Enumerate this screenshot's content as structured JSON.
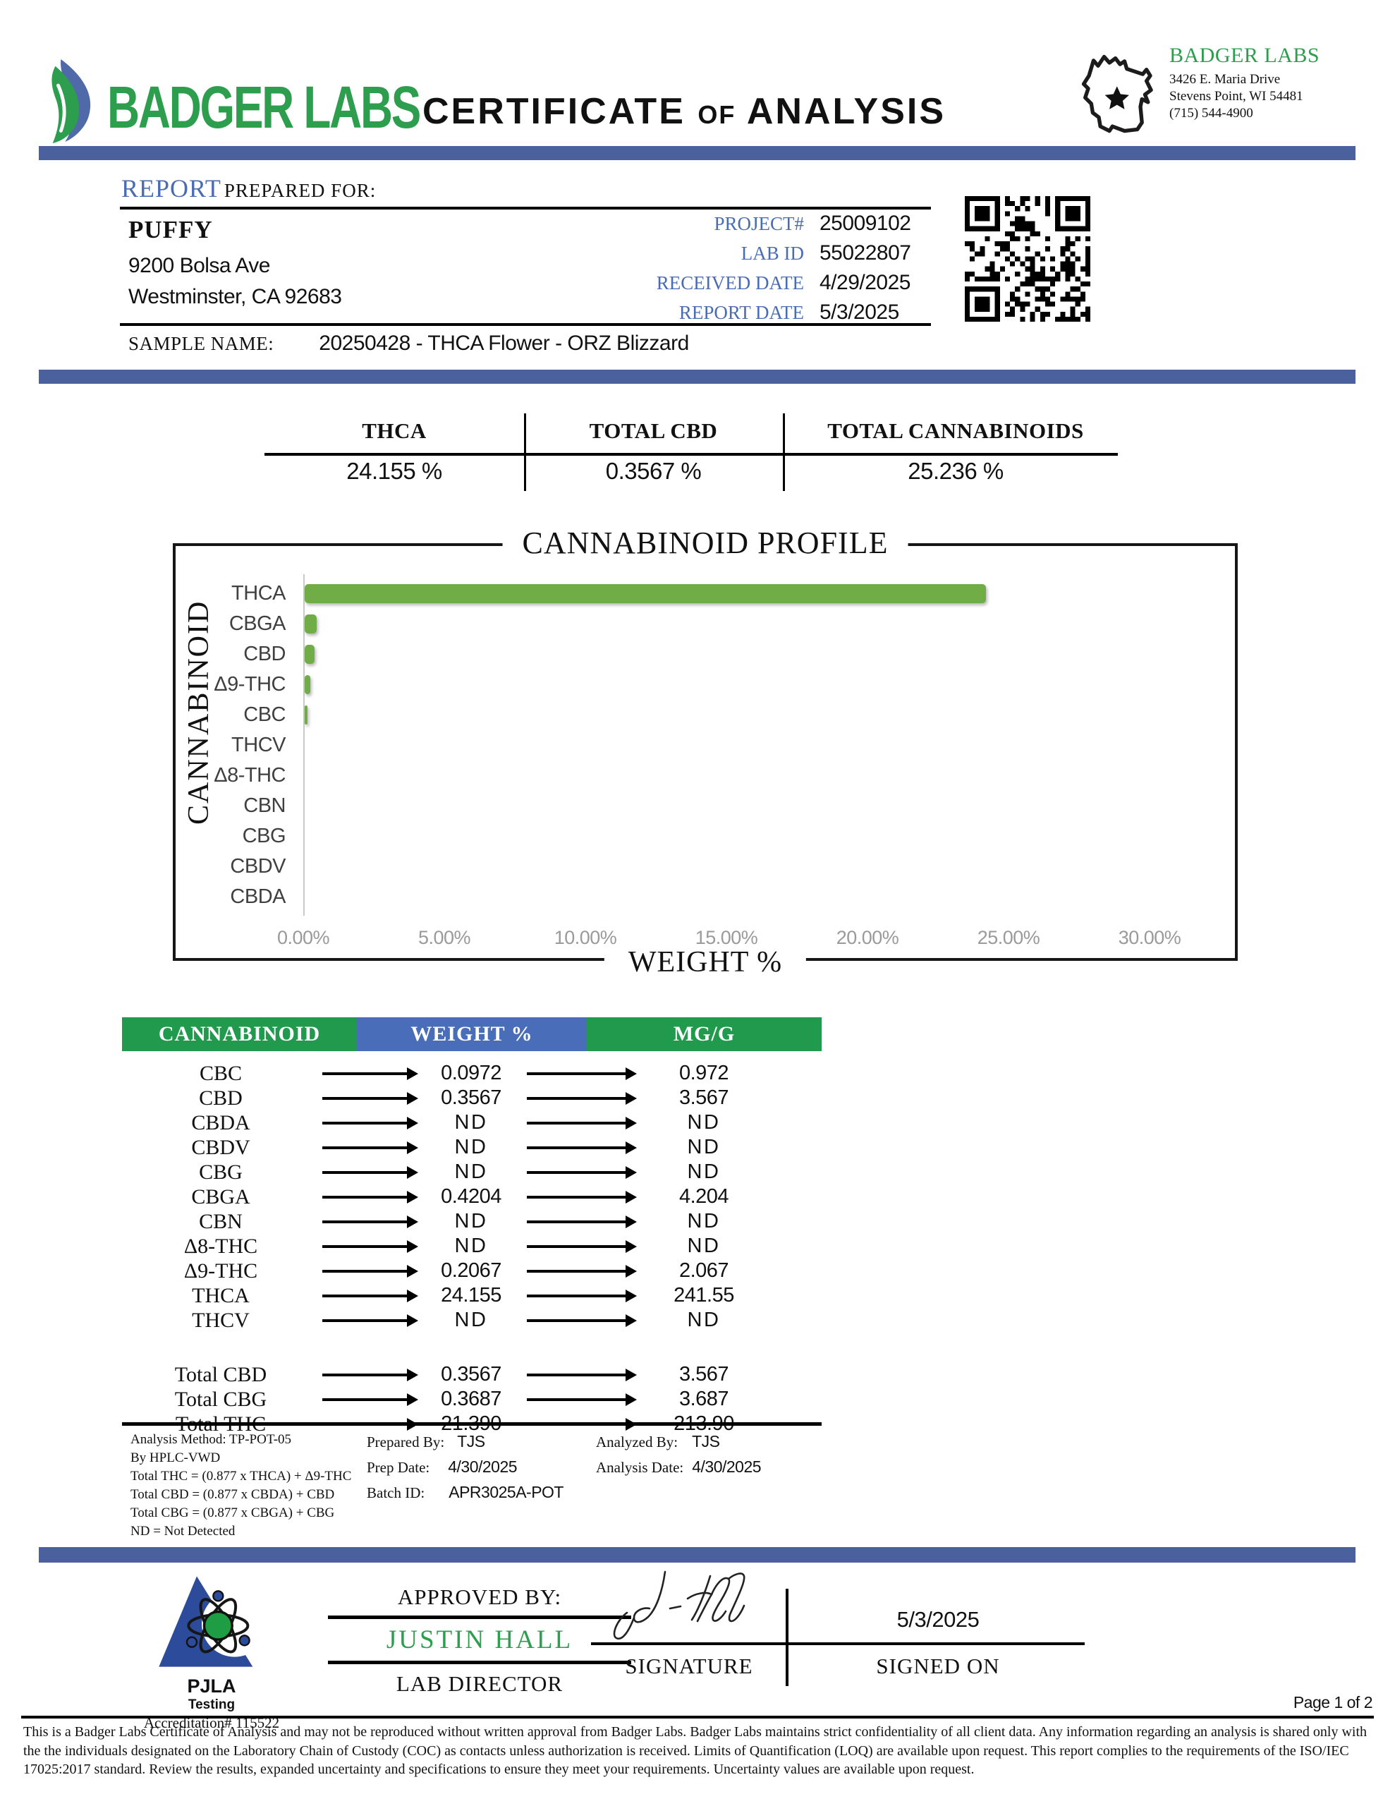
{
  "header": {
    "brand": "BADGER LABS",
    "title": [
      "CERTIFICATE",
      "of",
      "ANALYSIS"
    ],
    "lab": {
      "name": "BADGER LABS",
      "address_line1": "3426 E. Maria Drive",
      "address_line2": "Stevens Point, WI 54481",
      "phone": "(715) 544-4900"
    }
  },
  "report": {
    "section_label": "REPORT",
    "section_sublabel": "PREPARED FOR:",
    "client": {
      "name": "PUFFY",
      "address_line1": "9200 Bolsa Ave",
      "address_line2": "Westminster, CA  92683"
    },
    "meta": [
      {
        "label": "PROJECT#",
        "value": "25009102"
      },
      {
        "label": "LAB ID",
        "value": "55022807"
      },
      {
        "label": "RECEIVED DATE",
        "value": "4/29/2025"
      },
      {
        "label": "REPORT DATE",
        "value": "5/3/2025"
      }
    ],
    "sample_label": "SAMPLE NAME:",
    "sample_name": "20250428 - THCA Flower - ORZ Blizzard"
  },
  "summary": {
    "columns": [
      {
        "label": "THCA",
        "value": "24.155 %"
      },
      {
        "label": "TOTAL CBD",
        "value": "0.3567 %"
      },
      {
        "label": "TOTAL CANNABINOIDS",
        "value": "25.236 %"
      }
    ]
  },
  "chart_data": {
    "type": "bar",
    "orientation": "horizontal",
    "title": "CANNABINOID PROFILE",
    "xlabel": "WEIGHT %",
    "ylabel": "CANNABINOID",
    "categories": [
      "THCA",
      "CBGA",
      "CBD",
      "Δ9-THC",
      "CBC",
      "THCV",
      "Δ8-THC",
      "CBN",
      "CBG",
      "CBDV",
      "CBDA"
    ],
    "values": [
      24.155,
      0.4204,
      0.3567,
      0.2067,
      0.0972,
      0,
      0,
      0,
      0,
      0,
      0
    ],
    "xlim": [
      0,
      30
    ],
    "xticks": [
      "0.00%",
      "5.00%",
      "10.00%",
      "15.00%",
      "20.00%",
      "25.00%",
      "30.00%"
    ],
    "bar_color": "#70ad47",
    "grid": false,
    "legend": "none"
  },
  "table": {
    "headers": [
      "CANNABINOID",
      "WEIGHT %",
      "MG/G"
    ],
    "rows": [
      {
        "name": "CBC",
        "weight": "0.0972",
        "mgg": "0.972"
      },
      {
        "name": "CBD",
        "weight": "0.3567",
        "mgg": "3.567"
      },
      {
        "name": "CBDA",
        "weight": "ND",
        "mgg": "ND"
      },
      {
        "name": "CBDV",
        "weight": "ND",
        "mgg": "ND"
      },
      {
        "name": "CBG",
        "weight": "ND",
        "mgg": "ND"
      },
      {
        "name": "CBGA",
        "weight": "0.4204",
        "mgg": "4.204"
      },
      {
        "name": "CBN",
        "weight": "ND",
        "mgg": "ND"
      },
      {
        "name": "Δ8-THC",
        "weight": "ND",
        "mgg": "ND"
      },
      {
        "name": "Δ9-THC",
        "weight": "0.2067",
        "mgg": "2.067"
      },
      {
        "name": "THCA",
        "weight": "24.155",
        "mgg": "241.55"
      },
      {
        "name": "THCV",
        "weight": "ND",
        "mgg": "ND"
      }
    ],
    "totals": [
      {
        "name": "Total CBD",
        "weight": "0.3567",
        "mgg": "3.567"
      },
      {
        "name": "Total CBG",
        "weight": "0.3687",
        "mgg": "3.687"
      },
      {
        "name": "Total THC",
        "weight": "21.390",
        "mgg": "213.90"
      }
    ]
  },
  "methodology": {
    "lines": [
      "Analysis Method: TP-POT-05",
      "By HPLC-VWD",
      "Total THC = (0.877 x  THCA) + Δ9-THC",
      "Total CBD = (0.877 x  CBDA) + CBD",
      "Total CBG = (0.877 x  CBGA) + CBG",
      "ND = Not Detected"
    ],
    "prepared_by_label": "Prepared By:",
    "prepared_by": "TJS",
    "prep_date_label": "Prep Date:",
    "prep_date": "4/30/2025",
    "batch_id_label": "Batch ID:",
    "batch_id": "APR3025A-POT",
    "analyzed_by_label": "Analyzed By:",
    "analyzed_by": "TJS",
    "analysis_date_label": "Analysis Date:",
    "analysis_date": "4/30/2025"
  },
  "approval": {
    "accreditor": {
      "name": "PJLA",
      "line2": "Testing",
      "accreditation": "Accreditation# 115522"
    },
    "approved_by_label": "APPROVED BY:",
    "approver": "JUSTIN HALL",
    "approver_title": "LAB DIRECTOR",
    "signature_label": "SIGNATURE",
    "signed_on_label": "SIGNED ON",
    "signed_date": "5/3/2025"
  },
  "footer": {
    "page_label": "Page 1 of 2",
    "disclaimer": "This is a Badger Labs Certificate of Analysis and may not be reproduced without written approval from Badger Labs. Badger Labs maintains strict confidentiality of all client data. Any information regarding an analysis is shared only with the the individuals designated on the Laboratory Chain of Custody (COC) as contacts unless authorization is received. Limits of Quantification (LOQ) are available upon request. This report complies to the requirements of the ISO/IEC 17025:2017 standard. Review the results, expanded uncertainty and specifications to ensure they meet your requirements. Uncertainty values are available upon request."
  },
  "colors": {
    "accent_blue": "#4a619e",
    "label_blue": "#4a6cb3",
    "brand_green": "#2d9e4d",
    "bar_green": "#70ad47",
    "table_header_green": "#219a4e",
    "table_header_blue": "#4a6db9"
  }
}
